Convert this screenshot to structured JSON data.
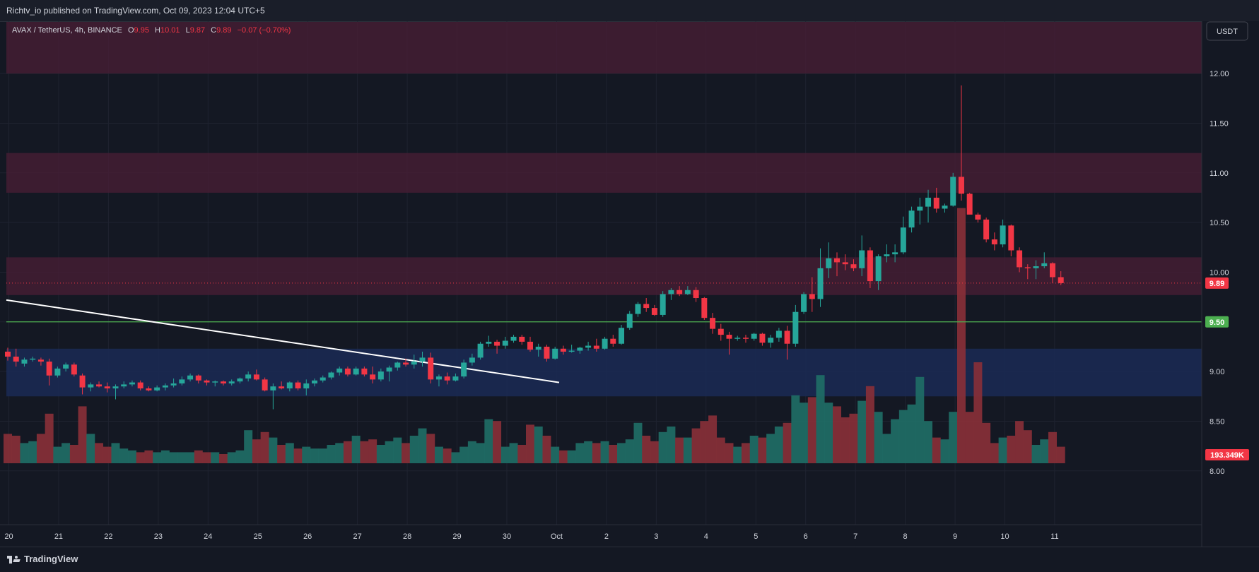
{
  "header": {
    "publish_line": "Richtv_io published on TradingView.com, Oct 09, 2023 12:04 UTC+5"
  },
  "legend": {
    "symbol": "AVAX / TetherUS, 4h, BINANCE",
    "o_label": "O",
    "o_value": "9.95",
    "h_label": "H",
    "h_value": "10.01",
    "l_label": "L",
    "l_value": "9.87",
    "c_label": "C",
    "c_value": "9.89",
    "change": "−0.07 (−0.70%)"
  },
  "currency_button": "USDT",
  "footer": {
    "brand": "TradingView"
  },
  "colors": {
    "up": "#26a69a",
    "down": "#f23645",
    "resistance_zone": "#4a1e35",
    "support_zone": "#1a2a55",
    "support_line": "#4caf50",
    "trendline": "#ffffff"
  },
  "chart_data": {
    "type": "candlestick",
    "symbol": "AVAX/USDT",
    "interval": "4h",
    "ylim": [
      7.65,
      12.52
    ],
    "y_ticks": [
      "12.00",
      "11.50",
      "11.00",
      "10.50",
      "10.00",
      "9.50",
      "9.00",
      "8.50",
      "8.00"
    ],
    "x_ticks": [
      "20",
      "21",
      "22",
      "23",
      "24",
      "25",
      "26",
      "27",
      "28",
      "29",
      "30",
      "Oct",
      "2",
      "3",
      "4",
      "5",
      "6",
      "7",
      "8",
      "9",
      "10",
      "11"
    ],
    "price_tags": [
      {
        "value": "9.89",
        "kind": "last_price"
      },
      {
        "value": "9.50",
        "kind": "support_line"
      },
      {
        "value": "193.349K",
        "kind": "volume"
      }
    ],
    "zones": [
      {
        "kind": "resistance",
        "from": 12.0,
        "to": 12.52
      },
      {
        "kind": "resistance",
        "from": 10.8,
        "to": 11.2
      },
      {
        "kind": "resistance",
        "from": 9.77,
        "to": 10.15
      },
      {
        "kind": "support",
        "from": 8.75,
        "to": 9.23
      }
    ],
    "horizontal_line": 9.5,
    "trendline": {
      "from": {
        "x": "Sep 20",
        "y": 9.72
      },
      "to": {
        "x": "Oct 1",
        "y": 8.89
      }
    },
    "candles": [
      [
        9.2,
        9.24,
        9.11,
        9.15,
        1.6
      ],
      [
        9.15,
        9.23,
        9.05,
        9.1,
        1.5
      ],
      [
        9.08,
        9.14,
        9.05,
        9.12,
        1.1
      ],
      [
        9.12,
        9.15,
        9.1,
        9.13,
        1.2
      ],
      [
        9.12,
        9.14,
        9.06,
        9.1,
        1.6
      ],
      [
        9.1,
        9.13,
        8.86,
        8.96,
        2.7
      ],
      [
        8.96,
        9.05,
        8.94,
        9.03,
        0.9
      ],
      [
        9.03,
        9.09,
        9.0,
        9.07,
        1.1
      ],
      [
        9.07,
        9.09,
        8.95,
        8.97,
        1.0
      ],
      [
        8.96,
        8.98,
        8.77,
        8.84,
        3.1
      ],
      [
        8.84,
        8.89,
        8.8,
        8.87,
        1.6
      ],
      [
        8.87,
        8.9,
        8.84,
        8.85,
        1.1
      ],
      [
        8.85,
        8.89,
        8.79,
        8.83,
        0.9
      ],
      [
        8.83,
        8.87,
        8.72,
        8.85,
        1.1
      ],
      [
        8.85,
        8.9,
        8.83,
        8.87,
        0.8
      ],
      [
        8.87,
        8.91,
        8.85,
        8.89,
        0.7
      ],
      [
        8.89,
        8.91,
        8.81,
        8.83,
        0.6
      ],
      [
        8.83,
        8.85,
        8.8,
        8.81,
        0.7
      ],
      [
        8.81,
        8.86,
        8.8,
        8.84,
        0.6
      ],
      [
        8.84,
        8.88,
        8.81,
        8.86,
        0.7
      ],
      [
        8.86,
        8.93,
        8.84,
        8.88,
        0.6
      ],
      [
        8.88,
        8.95,
        8.86,
        8.92,
        0.6
      ],
      [
        8.92,
        8.98,
        8.9,
        8.96,
        0.6
      ],
      [
        8.96,
        8.97,
        8.88,
        8.91,
        0.7
      ],
      [
        8.91,
        8.92,
        8.86,
        8.89,
        0.6
      ],
      [
        8.89,
        8.91,
        8.85,
        8.9,
        0.6
      ],
      [
        8.9,
        8.91,
        8.86,
        8.88,
        0.5
      ],
      [
        8.88,
        8.92,
        8.86,
        8.9,
        0.6
      ],
      [
        8.9,
        8.94,
        8.88,
        8.93,
        0.7
      ],
      [
        8.93,
        9.0,
        8.9,
        8.97,
        1.8
      ],
      [
        8.97,
        9.02,
        8.91,
        8.92,
        1.3
      ],
      [
        8.92,
        8.94,
        8.8,
        8.81,
        1.7
      ],
      [
        8.81,
        8.88,
        8.62,
        8.85,
        1.4
      ],
      [
        8.85,
        8.9,
        8.82,
        8.83,
        1.0
      ],
      [
        8.83,
        8.9,
        8.8,
        8.89,
        1.1
      ],
      [
        8.89,
        8.91,
        8.81,
        8.83,
        0.8
      ],
      [
        8.83,
        8.92,
        8.76,
        8.88,
        0.9
      ],
      [
        8.88,
        8.93,
        8.85,
        8.91,
        0.8
      ],
      [
        8.91,
        8.96,
        8.89,
        8.94,
        0.8
      ],
      [
        8.94,
        9.0,
        8.92,
        8.99,
        1.0
      ],
      [
        8.99,
        9.05,
        8.96,
        9.03,
        1.1
      ],
      [
        9.03,
        9.05,
        8.95,
        8.97,
        1.2
      ],
      [
        8.97,
        9.05,
        8.96,
        9.03,
        1.5
      ],
      [
        9.03,
        9.05,
        8.95,
        8.97,
        1.2
      ],
      [
        8.97,
        9.05,
        8.88,
        8.92,
        1.3
      ],
      [
        8.92,
        9.03,
        8.9,
        9.0,
        1.0
      ],
      [
        9.0,
        9.06,
        8.9,
        9.04,
        1.2
      ],
      [
        9.04,
        9.1,
        9.01,
        9.09,
        1.4
      ],
      [
        9.09,
        9.13,
        9.05,
        9.07,
        1.1
      ],
      [
        9.07,
        9.17,
        9.03,
        9.1,
        1.5
      ],
      [
        9.1,
        9.2,
        9.05,
        9.14,
        1.9
      ],
      [
        9.14,
        9.19,
        8.88,
        8.92,
        1.6
      ],
      [
        8.92,
        8.97,
        8.85,
        8.95,
        0.9
      ],
      [
        8.95,
        8.99,
        8.87,
        8.91,
        0.8
      ],
      [
        8.91,
        8.98,
        8.9,
        8.95,
        0.6
      ],
      [
        8.95,
        9.12,
        8.93,
        9.09,
        0.9
      ],
      [
        9.09,
        9.18,
        9.06,
        9.14,
        1.2
      ],
      [
        9.14,
        9.3,
        9.12,
        9.28,
        1.1
      ],
      [
        9.28,
        9.36,
        9.25,
        9.3,
        2.4
      ],
      [
        9.3,
        9.32,
        9.18,
        9.26,
        2.3
      ],
      [
        9.26,
        9.35,
        9.23,
        9.31,
        0.9
      ],
      [
        9.31,
        9.37,
        9.29,
        9.35,
        1.1
      ],
      [
        9.35,
        9.37,
        9.27,
        9.3,
        1.0
      ],
      [
        9.3,
        9.35,
        9.2,
        9.22,
        2.1
      ],
      [
        9.22,
        9.28,
        9.15,
        9.25,
        2.0
      ],
      [
        9.25,
        9.27,
        9.1,
        9.13,
        1.5
      ],
      [
        9.13,
        9.25,
        9.12,
        9.23,
        0.9
      ],
      [
        9.23,
        9.26,
        9.17,
        9.2,
        0.7
      ],
      [
        9.2,
        9.27,
        9.19,
        9.21,
        0.7
      ],
      [
        9.21,
        9.25,
        9.18,
        9.24,
        1.1
      ],
      [
        9.24,
        9.3,
        9.21,
        9.26,
        1.2
      ],
      [
        9.26,
        9.33,
        9.2,
        9.23,
        1.1
      ],
      [
        9.23,
        9.35,
        9.22,
        9.33,
        1.2
      ],
      [
        9.33,
        9.37,
        9.25,
        9.28,
        1.0
      ],
      [
        9.28,
        9.47,
        9.27,
        9.44,
        1.1
      ],
      [
        9.44,
        9.61,
        9.42,
        9.58,
        1.3
      ],
      [
        9.58,
        9.7,
        9.55,
        9.68,
        2.2
      ],
      [
        9.68,
        9.74,
        9.6,
        9.64,
        1.5
      ],
      [
        9.64,
        9.67,
        9.56,
        9.57,
        1.2
      ],
      [
        9.57,
        9.81,
        9.55,
        9.78,
        1.7
      ],
      [
        9.78,
        9.84,
        9.72,
        9.82,
        2.0
      ],
      [
        9.82,
        9.86,
        9.76,
        9.78,
        1.4
      ],
      [
        9.78,
        9.86,
        9.77,
        9.82,
        1.4
      ],
      [
        9.82,
        9.85,
        9.7,
        9.74,
        1.9
      ],
      [
        9.74,
        9.75,
        9.52,
        9.54,
        2.3
      ],
      [
        9.54,
        9.59,
        9.38,
        9.43,
        2.6
      ],
      [
        9.43,
        9.48,
        9.31,
        9.37,
        1.4
      ],
      [
        9.37,
        9.4,
        9.17,
        9.33,
        1.1
      ],
      [
        9.33,
        9.36,
        9.31,
        9.34,
        0.9
      ],
      [
        9.34,
        9.37,
        9.29,
        9.33,
        1.1
      ],
      [
        9.33,
        9.39,
        9.31,
        9.38,
        1.5
      ],
      [
        9.38,
        9.39,
        9.26,
        9.29,
        1.4
      ],
      [
        9.29,
        9.37,
        9.24,
        9.34,
        1.6
      ],
      [
        9.34,
        9.44,
        9.3,
        9.41,
        2.0
      ],
      [
        9.41,
        9.46,
        9.12,
        9.28,
        2.2
      ],
      [
        9.28,
        9.67,
        9.25,
        9.6,
        3.7
      ],
      [
        9.6,
        9.8,
        9.58,
        9.78,
        3.3
      ],
      [
        9.78,
        9.95,
        9.6,
        9.73,
        3.6
      ],
      [
        9.73,
        10.24,
        9.65,
        10.04,
        4.8
      ],
      [
        10.04,
        10.3,
        9.94,
        10.14,
        3.3
      ],
      [
        10.14,
        10.2,
        9.96,
        10.1,
        3.1
      ],
      [
        10.1,
        10.18,
        10.02,
        10.08,
        2.5
      ],
      [
        10.08,
        10.13,
        10.01,
        10.04,
        2.7
      ],
      [
        10.04,
        10.37,
        9.96,
        10.22,
        3.4
      ],
      [
        10.22,
        10.25,
        9.84,
        9.91,
        4.2
      ],
      [
        9.91,
        10.18,
        9.82,
        10.16,
        2.8
      ],
      [
        10.16,
        10.28,
        10.1,
        10.18,
        1.6
      ],
      [
        10.18,
        10.28,
        10.1,
        10.2,
        2.4
      ],
      [
        10.2,
        10.56,
        10.18,
        10.45,
        2.9
      ],
      [
        10.45,
        10.66,
        10.4,
        10.62,
        3.2
      ],
      [
        10.62,
        10.75,
        10.48,
        10.66,
        4.7
      ],
      [
        10.66,
        10.83,
        10.5,
        10.75,
        2.3
      ],
      [
        10.75,
        10.85,
        10.6,
        10.64,
        1.4
      ],
      [
        10.64,
        10.69,
        10.6,
        10.67,
        1.3
      ],
      [
        10.67,
        11.0,
        10.66,
        10.96,
        2.8
      ],
      [
        10.96,
        11.88,
        10.72,
        10.79,
        13.9
      ],
      [
        10.79,
        10.8,
        10.59,
        10.58,
        2.8
      ],
      [
        10.58,
        10.6,
        10.5,
        10.53,
        5.5
      ],
      [
        10.53,
        10.55,
        10.3,
        10.33,
        2.2
      ],
      [
        10.33,
        10.4,
        10.22,
        10.28,
        1.1
      ],
      [
        10.28,
        10.53,
        10.25,
        10.47,
        1.4
      ],
      [
        10.47,
        10.48,
        10.16,
        10.22,
        1.5
      ],
      [
        10.22,
        10.25,
        10.0,
        10.05,
        2.3
      ],
      [
        10.05,
        10.08,
        9.93,
        10.04,
        1.8
      ],
      [
        10.04,
        10.12,
        9.93,
        10.06,
        1.0
      ],
      [
        10.06,
        10.2,
        10.04,
        10.09,
        1.3
      ],
      [
        10.09,
        10.1,
        9.89,
        9.95,
        1.7
      ],
      [
        9.95,
        10.01,
        9.87,
        9.89,
        0.9
      ]
    ]
  }
}
